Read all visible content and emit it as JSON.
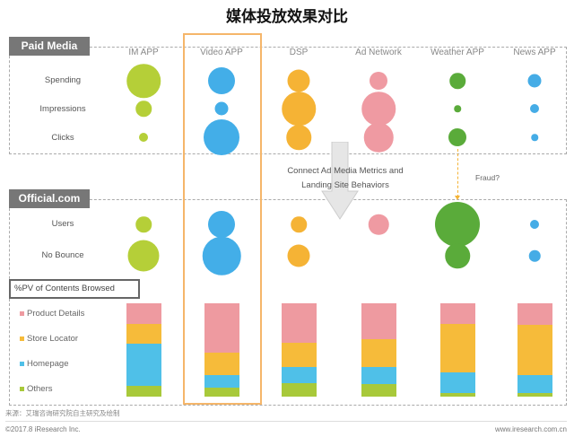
{
  "title": "媒体投放效果对比",
  "paid_media": {
    "label": "Paid Media",
    "rows": [
      "Spending",
      "Impressions",
      "Clicks"
    ]
  },
  "official": {
    "label": "Official.com",
    "rows": [
      "Users",
      "No Bounce"
    ]
  },
  "columns": [
    "IM APP",
    "Video APP",
    "DSP",
    "Ad Network",
    "Weather APP",
    "News APP"
  ],
  "highlighted_column": "Video APP",
  "colors": {
    "IM APP": "#b5cf38",
    "Video APP": "#43aee8",
    "DSP": "#f5b335",
    "Ad Network": "#ef9aa2",
    "Weather APP": "#5aab3a",
    "News APP": "#45ace6",
    "highlight": "#f5b66a"
  },
  "bubble_sizes": {
    "Spending": [
      30,
      24,
      20,
      16,
      14,
      12
    ],
    "Impressions": [
      14,
      12,
      30,
      30,
      6,
      8
    ],
    "Clicks": [
      8,
      32,
      22,
      26,
      16,
      6
    ],
    "Users": [
      14,
      24,
      14,
      18,
      40,
      8
    ],
    "No Bounce": [
      28,
      34,
      20,
      0,
      22,
      10
    ]
  },
  "arrow_text": [
    "Connect Ad Media Metrics and",
    "Landing Site Behaviors"
  ],
  "fraud_text": "Fraud?",
  "pv": {
    "label": "%PV of Contents Browsed",
    "categories": [
      {
        "name": "Product Details",
        "color": "#ee9aa0"
      },
      {
        "name": "Store Locator",
        "color": "#f6bb3a"
      },
      {
        "name": "Homepage",
        "color": "#4fc0e8"
      },
      {
        "name": "Others",
        "color": "#a8c93a"
      }
    ],
    "values": [
      [
        22,
        21,
        45,
        12
      ],
      [
        53,
        24,
        13,
        10
      ],
      [
        42,
        26,
        18,
        14
      ],
      [
        38,
        30,
        19,
        13
      ],
      [
        22,
        52,
        22,
        4
      ],
      [
        23,
        54,
        19,
        4
      ]
    ]
  },
  "source": "来源：艾瑞咨询研究院自主研究及绘制",
  "footer": {
    "copyright": "©2017.8 iResearch Inc.",
    "website": "www.iresearch.com.cn"
  }
}
